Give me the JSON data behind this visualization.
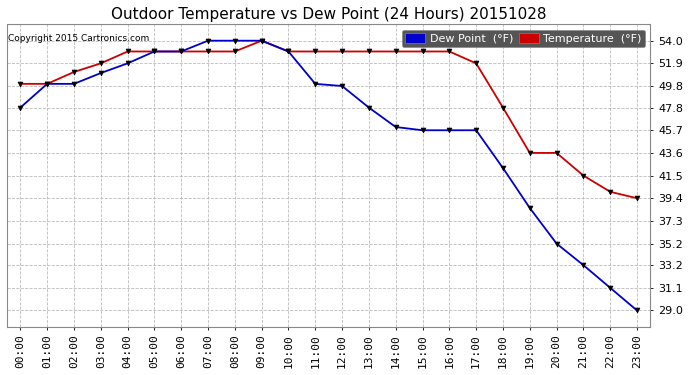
{
  "title": "Outdoor Temperature vs Dew Point (24 Hours) 20151028",
  "copyright": "Copyright 2015 Cartronics.com",
  "background_color": "#ffffff",
  "plot_bg_color": "#ffffff",
  "grid_color": "#aaaaaa",
  "x_labels": [
    "00:00",
    "01:00",
    "02:00",
    "03:00",
    "04:00",
    "05:00",
    "06:00",
    "07:00",
    "08:00",
    "09:00",
    "10:00",
    "11:00",
    "12:00",
    "13:00",
    "14:00",
    "15:00",
    "16:00",
    "17:00",
    "18:00",
    "19:00",
    "20:00",
    "21:00",
    "22:00",
    "23:00"
  ],
  "y_ticks": [
    29.0,
    31.1,
    33.2,
    35.2,
    37.3,
    39.4,
    41.5,
    43.6,
    45.7,
    47.8,
    49.8,
    51.9,
    54.0
  ],
  "temperature": [
    50.0,
    50.0,
    51.1,
    51.9,
    53.0,
    53.0,
    53.0,
    53.0,
    53.0,
    54.0,
    53.0,
    53.0,
    53.0,
    53.0,
    53.0,
    53.0,
    53.0,
    51.9,
    47.8,
    43.6,
    43.6,
    41.5,
    40.0,
    39.4
  ],
  "dew_point": [
    47.8,
    50.0,
    50.0,
    51.0,
    51.9,
    53.0,
    53.0,
    54.0,
    54.0,
    54.0,
    53.0,
    50.0,
    49.8,
    47.8,
    46.0,
    45.7,
    45.7,
    45.7,
    42.2,
    38.5,
    35.2,
    33.2,
    31.1,
    29.0
  ],
  "temp_color": "#cc0000",
  "dew_color": "#0000cc",
  "title_fontsize": 11,
  "tick_fontsize": 8,
  "legend_fontsize": 8,
  "ylim_min": 27.5,
  "ylim_max": 55.5,
  "figwidth": 6.9,
  "figheight": 3.75,
  "dpi": 100
}
